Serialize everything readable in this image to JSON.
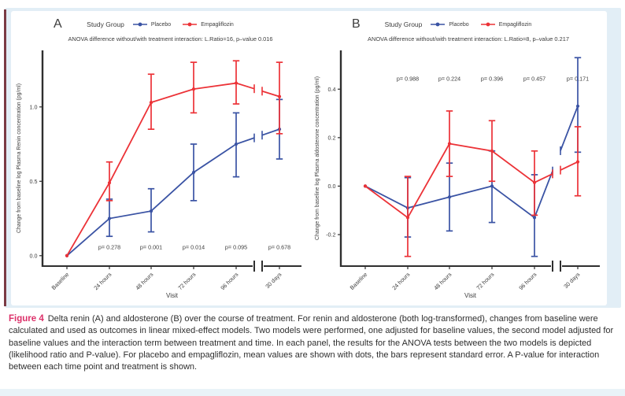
{
  "colors": {
    "placebo": "#3a53a4",
    "empagliflozin": "#ec3237",
    "band": "#e2eef6",
    "accent_bar": "#7a3b44",
    "caption_label": "#dc3069",
    "axis": "#2f2f2f",
    "text": "#3d3d3d"
  },
  "panels": [
    {
      "label": "A",
      "legend_title": "Study Group"
    },
    {
      "label": "B",
      "legend_title": "Study Group"
    }
  ],
  "chart_data": [
    {
      "type": "line",
      "title": "ANOVA difference without/with treatment interaction: L.Ratio=16, p–value 0.016",
      "categories": [
        "Baseline",
        "24 hours",
        "48 hours",
        "72 hours",
        "96 hours",
        "30 days"
      ],
      "xlabel": "Visit",
      "ylabel": "Change from baseline log Plasma Renin concentration (pg/ml)",
      "ylim": [
        -0.07,
        1.38
      ],
      "yticks": [
        {
          "v": 0.0,
          "label": "0.0"
        },
        {
          "v": 0.5,
          "label": "0.5"
        },
        {
          "v": 1.0,
          "label": "1.0"
        }
      ],
      "grid": false,
      "legend_position": "top",
      "axis_break_between": [
        "96 hours",
        "30 days"
      ],
      "series": [
        {
          "name": "Placebo",
          "color": "#3a53a4",
          "values": [
            0,
            0.25,
            0.3,
            0.56,
            0.75,
            0.85
          ],
          "err_low": [
            0,
            0.13,
            0.16,
            0.37,
            0.53,
            0.65
          ],
          "err_high": [
            0,
            0.38,
            0.45,
            0.75,
            0.96,
            1.05
          ]
        },
        {
          "name": "Empagliflozin",
          "color": "#ec3237",
          "values": [
            0,
            0.49,
            1.03,
            1.12,
            1.16,
            1.07
          ],
          "err_low": [
            0,
            0.37,
            0.85,
            0.96,
            1.02,
            0.82
          ],
          "err_high": [
            0,
            0.63,
            1.22,
            1.3,
            1.31,
            1.3
          ]
        }
      ],
      "p_values": {
        "labels": [
          "p= 0.278",
          "p= 0.001",
          "p= 0.014",
          "p= 0.095",
          "p= 0.678"
        ],
        "y": 0.045
      }
    },
    {
      "type": "line",
      "title": "ANOVA difference without/with treatment interaction: L.Ratio=8, p–value 0.217",
      "categories": [
        "Baseline",
        "24 hours",
        "48 hours",
        "72 hours",
        "96 hours",
        "30 days"
      ],
      "xlabel": "Visit",
      "ylabel": "Change from baseline log Plasma aldosterone concentration (pg/ml)",
      "ylim": [
        -0.33,
        0.56
      ],
      "yticks": [
        {
          "v": -0.2,
          "label": "-0.2"
        },
        {
          "v": 0.0,
          "label": "0.0"
        },
        {
          "v": 0.2,
          "label": "0.2"
        },
        {
          "v": 0.4,
          "label": "0.4"
        }
      ],
      "grid": false,
      "legend_position": "top",
      "axis_break_between": [
        "96 hours",
        "30 days"
      ],
      "series": [
        {
          "name": "Placebo",
          "color": "#3a53a4",
          "values": [
            0,
            -0.09,
            -0.045,
            0.0,
            -0.13,
            0.33
          ],
          "err_low": [
            0,
            -0.21,
            -0.185,
            -0.15,
            -0.29,
            0.14
          ],
          "err_high": [
            0,
            0.035,
            0.095,
            0.145,
            0.047,
            0.53
          ]
        },
        {
          "name": "Empagliflozin",
          "color": "#ec3237",
          "values": [
            0,
            -0.13,
            0.175,
            0.145,
            0.015,
            0.1
          ],
          "err_low": [
            0,
            -0.29,
            0.04,
            0.02,
            -0.12,
            -0.04
          ],
          "err_high": [
            0,
            0.04,
            0.31,
            0.27,
            0.145,
            0.245
          ]
        }
      ],
      "p_values": {
        "labels": [
          "p= 0.988",
          "p= 0.224",
          "p= 0.396",
          "p= 0.457",
          "p= 0.171"
        ],
        "y": 0.435
      }
    }
  ],
  "caption": {
    "label": "Figure 4",
    "text": "Delta renin (A) and aldosterone (B) over the course of treatment. For renin and aldosterone (both log-transformed), changes from baseline were calculated and used as outcomes in linear mixed-effect models. Two models were performed, one adjusted for baseline values, the second model adjusted for baseline values and the interaction term between treatment and time. In each panel, the results for the ANOVA tests between the two models is depicted (likelihood ratio and P-value). For placebo and empagliflozin, mean values are shown with dots, the bars represent standard error. A P-value for interaction between each time point and treatment is shown."
  }
}
